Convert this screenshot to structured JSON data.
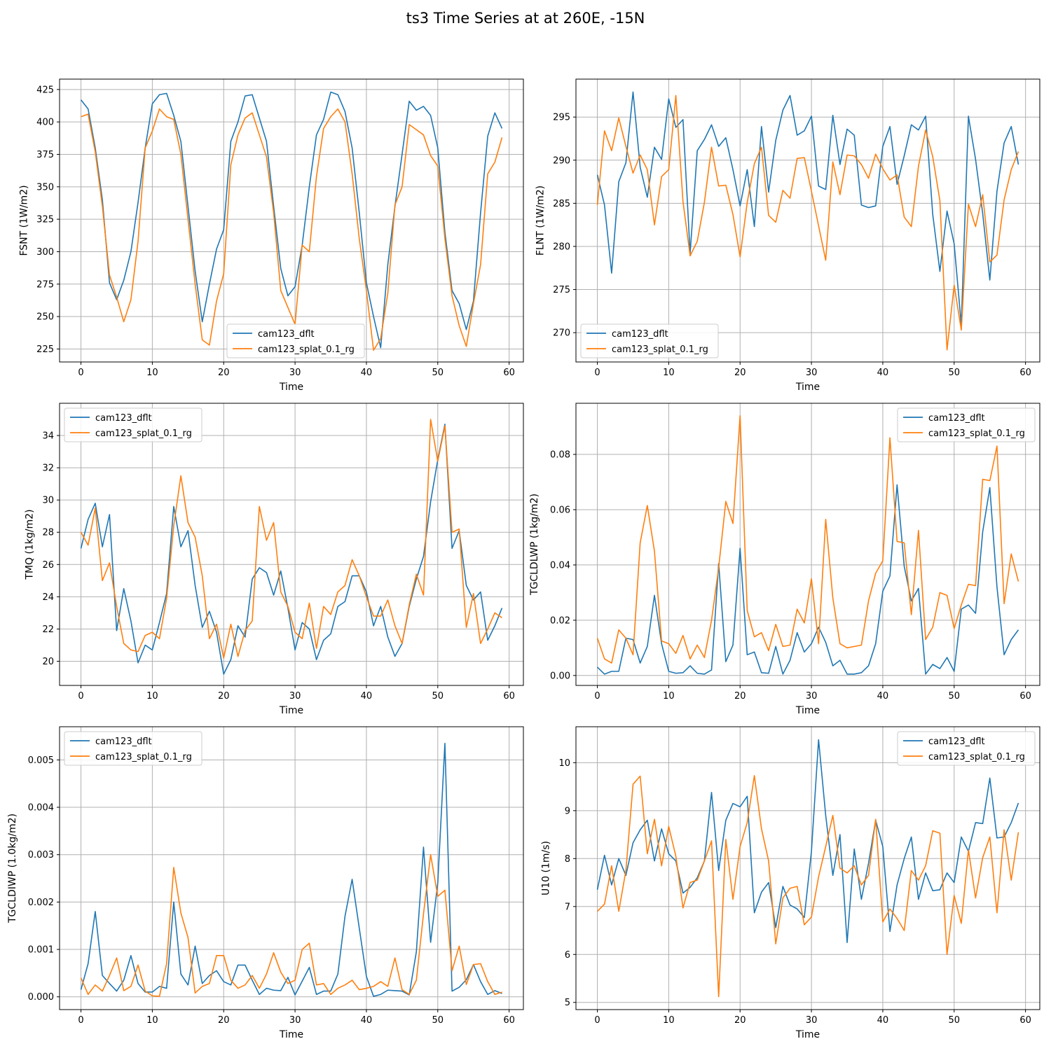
{
  "title": "ts3 Time Series at at 260E, -15N",
  "colors": {
    "series1": "#1f77b4",
    "series2": "#ff7f0e",
    "grid": "#b0b0b0",
    "axis": "#000000"
  },
  "chart_data": [
    {
      "type": "line",
      "panel": "top-left",
      "title": "",
      "xlabel": "Time",
      "ylabel": "FSNT (1W/m2)",
      "xlim": [
        -3,
        62
      ],
      "ylim": [
        215,
        433
      ],
      "xticks": [
        0,
        10,
        20,
        30,
        40,
        50,
        60
      ],
      "yticks": [
        225,
        250,
        275,
        300,
        325,
        350,
        375,
        400,
        425
      ],
      "grid": true,
      "legend": "lower-center",
      "series": [
        {
          "name": "cam123_dflt",
          "color": "#1f77b4",
          "values": [
            417,
            410,
            380,
            340,
            276,
            263,
            278,
            300,
            338,
            380,
            414,
            421,
            422,
            405,
            385,
            335,
            285,
            246,
            275,
            302,
            317,
            385,
            400,
            420,
            421,
            403,
            385,
            335,
            287,
            266,
            273,
            305,
            350,
            390,
            402,
            423,
            421,
            408,
            380,
            330,
            276,
            250,
            226,
            290,
            335,
            375,
            416,
            409,
            412,
            405,
            380,
            315,
            270,
            260,
            240,
            262,
            330,
            389,
            407,
            395
          ]
        },
        {
          "name": "cam123_splat_0.1_rg",
          "color": "#ff7f0e",
          "values": [
            404,
            406,
            377,
            335,
            282,
            265,
            246,
            263,
            308,
            380,
            393,
            410,
            404,
            402,
            375,
            325,
            275,
            232,
            228,
            262,
            283,
            367,
            390,
            403,
            407,
            390,
            373,
            330,
            270,
            257,
            244,
            305,
            300,
            358,
            395,
            404,
            410,
            400,
            360,
            310,
            270,
            224,
            233,
            268,
            336,
            350,
            398,
            394,
            390,
            374,
            366,
            310,
            266,
            243,
            227,
            260,
            290,
            360,
            369,
            388
          ]
        }
      ]
    },
    {
      "type": "line",
      "panel": "top-right",
      "title": "",
      "xlabel": "Time",
      "ylabel": "FLNT (1W/m2)",
      "xlim": [
        -3,
        62
      ],
      "ylim": [
        266.6,
        299.4
      ],
      "xticks": [
        0,
        10,
        20,
        30,
        40,
        50,
        60
      ],
      "yticks": [
        270,
        275,
        280,
        285,
        290,
        295
      ],
      "grid": true,
      "legend": "lower-left",
      "series": [
        {
          "name": "cam123_dflt",
          "color": "#1f77b4",
          "values": [
            288.3,
            284.8,
            276.9,
            287.5,
            289.7,
            297.9,
            289.2,
            285.7,
            291.5,
            290.1,
            297.1,
            293.8,
            294.7,
            279.2,
            291.1,
            292.4,
            294.1,
            291.6,
            292.6,
            288.9,
            284.7,
            288.9,
            282.3,
            293.9,
            286.3,
            292.3,
            295.8,
            297.5,
            292.9,
            293.4,
            295.1,
            287.0,
            286.6,
            295.2,
            289.5,
            293.6,
            292.9,
            284.8,
            284.5,
            284.7,
            291.6,
            293.9,
            287.2,
            290.5,
            294.1,
            293.5,
            295.1,
            283.7,
            277.1,
            284.1,
            280.3,
            270.9,
            295.1,
            290.1,
            283.8,
            276.1,
            286.4,
            292.0,
            293.9,
            289.5
          ]
        },
        {
          "name": "cam123_splat_0.1_rg",
          "color": "#ff7f0e",
          "values": [
            284.8,
            293.4,
            291.1,
            294.9,
            291.6,
            288.5,
            290.6,
            288.9,
            282.5,
            288.1,
            288.9,
            297.5,
            285.2,
            278.9,
            280.6,
            285.1,
            291.5,
            287.0,
            287.1,
            283.7,
            278.8,
            285.1,
            289.6,
            291.5,
            283.6,
            282.8,
            286.5,
            285.6,
            290.2,
            290.3,
            286.4,
            282.4,
            278.4,
            289.8,
            286.0,
            290.6,
            290.5,
            289.5,
            287.9,
            290.7,
            289.0,
            287.7,
            288.3,
            283.4,
            282.3,
            289.3,
            293.5,
            290.4,
            285.3,
            268.0,
            275.5,
            270.3,
            284.9,
            282.3,
            286.0,
            278.2,
            279.0,
            285.4,
            288.9,
            291.0
          ]
        }
      ]
    },
    {
      "type": "line",
      "panel": "middle-left",
      "title": "",
      "xlabel": "Time",
      "ylabel": "TMQ (1kg/m2)",
      "xlim": [
        -3,
        62
      ],
      "ylim": [
        18.5,
        36.0
      ],
      "xticks": [
        0,
        10,
        20,
        30,
        40,
        50,
        60
      ],
      "yticks": [
        20,
        22,
        24,
        26,
        28,
        30,
        32,
        34
      ],
      "grid": true,
      "legend": "upper-left",
      "series": [
        {
          "name": "cam123_dflt",
          "color": "#1f77b4",
          "values": [
            27.0,
            28.8,
            29.8,
            27.1,
            29.1,
            21.9,
            24.5,
            22.5,
            19.9,
            21.0,
            20.7,
            22.4,
            24.2,
            29.6,
            27.1,
            28.1,
            24.7,
            22.1,
            23.1,
            21.8,
            19.2,
            20.1,
            22.2,
            21.5,
            25.1,
            25.8,
            25.5,
            24.1,
            25.6,
            23.3,
            20.7,
            22.4,
            22.0,
            20.1,
            21.3,
            21.7,
            23.4,
            23.7,
            25.3,
            25.3,
            24.3,
            22.2,
            23.4,
            21.5,
            20.3,
            21.1,
            23.4,
            25.1,
            26.5,
            29.9,
            32.5,
            34.7,
            27.0,
            28.1,
            24.7,
            23.8,
            24.3,
            21.3,
            22.2,
            23.3
          ]
        },
        {
          "name": "cam123_splat_0.1_rg",
          "color": "#ff7f0e",
          "values": [
            28.0,
            27.2,
            29.5,
            25.0,
            26.1,
            23.4,
            21.1,
            20.7,
            20.6,
            21.6,
            21.8,
            21.4,
            23.9,
            28.4,
            31.5,
            28.6,
            27.7,
            25.3,
            21.4,
            22.3,
            20.2,
            22.3,
            20.3,
            21.9,
            22.5,
            29.6,
            27.5,
            28.6,
            24.3,
            23.4,
            21.8,
            21.4,
            23.6,
            20.8,
            23.4,
            22.9,
            24.3,
            24.7,
            26.3,
            25.3,
            24.0,
            22.8,
            22.8,
            23.8,
            22.2,
            21.1,
            23.5,
            25.4,
            24.1,
            35.0,
            32.4,
            34.6,
            28.0,
            28.2,
            22.1,
            24.2,
            21.1,
            22.0,
            23.0,
            22.7
          ]
        }
      ]
    },
    {
      "type": "line",
      "panel": "middle-right",
      "title": "",
      "xlabel": "Time",
      "ylabel": "TGCLDLWP (1kg/m2)",
      "xlim": [
        -3,
        62
      ],
      "ylim": [
        -0.0036,
        0.0985
      ],
      "xticks": [
        0,
        10,
        20,
        30,
        40,
        50,
        60
      ],
      "yticks": [
        0.0,
        0.02,
        0.04,
        0.06,
        0.08
      ],
      "ytick_labels": [
        "0.00",
        "0.02",
        "0.04",
        "0.06",
        "0.08"
      ],
      "grid": true,
      "legend": "upper-right",
      "series": [
        {
          "name": "cam123_dflt",
          "color": "#1f77b4",
          "values": [
            0.003,
            0.0005,
            0.0015,
            0.0015,
            0.0135,
            0.013,
            0.0045,
            0.0105,
            0.029,
            0.0115,
            0.0015,
            0.0008,
            0.001,
            0.0035,
            0.0008,
            0.0005,
            0.002,
            0.0405,
            0.005,
            0.011,
            0.046,
            0.0075,
            0.0085,
            0.001,
            0.0008,
            0.0105,
            0.0005,
            0.0055,
            0.0155,
            0.0085,
            0.0115,
            0.0175,
            0.012,
            0.0035,
            0.0055,
            0.0005,
            0.0005,
            0.001,
            0.0035,
            0.0115,
            0.0305,
            0.036,
            0.069,
            0.0395,
            0.027,
            0.0315,
            0.0005,
            0.004,
            0.0025,
            0.0065,
            0.0015,
            0.024,
            0.0255,
            0.0225,
            0.052,
            0.068,
            0.032,
            0.0075,
            0.013,
            0.0165
          ]
        },
        {
          "name": "cam123_splat_0.1_rg",
          "color": "#ff7f0e",
          "values": [
            0.0135,
            0.006,
            0.0045,
            0.0165,
            0.0135,
            0.0075,
            0.048,
            0.0615,
            0.045,
            0.0125,
            0.0115,
            0.008,
            0.0145,
            0.006,
            0.011,
            0.0065,
            0.02,
            0.039,
            0.063,
            0.055,
            0.094,
            0.0235,
            0.014,
            0.0155,
            0.009,
            0.0185,
            0.0105,
            0.011,
            0.024,
            0.019,
            0.035,
            0.0115,
            0.0565,
            0.028,
            0.0115,
            0.01,
            0.0105,
            0.011,
            0.027,
            0.037,
            0.0415,
            0.086,
            0.0485,
            0.048,
            0.022,
            0.0525,
            0.013,
            0.0175,
            0.03,
            0.029,
            0.017,
            0.0255,
            0.033,
            0.0325,
            0.071,
            0.0705,
            0.083,
            0.026,
            0.044,
            0.034
          ]
        }
      ]
    },
    {
      "type": "line",
      "panel": "bottom-left",
      "title": "",
      "xlabel": "Time",
      "ylabel": "TGCLDIWP (1.0kg/m2)",
      "xlim": [
        -3,
        62
      ],
      "ylim": [
        -0.00027,
        0.0057
      ],
      "xticks": [
        0,
        10,
        20,
        30,
        40,
        50,
        60
      ],
      "yticks": [
        0.0,
        0.001,
        0.002,
        0.003,
        0.004,
        0.005
      ],
      "ytick_labels": [
        "0.000",
        "0.001",
        "0.002",
        "0.003",
        "0.004",
        "0.005"
      ],
      "grid": true,
      "legend": "upper-left",
      "series": [
        {
          "name": "cam123_dflt",
          "color": "#1f77b4",
          "values": [
            0.00015,
            0.0007,
            0.0018,
            0.00045,
            0.00028,
            0.00012,
            0.00035,
            0.00087,
            0.00028,
            0.0001,
            0.0001,
            0.00022,
            0.00018,
            0.002,
            0.00048,
            0.00025,
            0.00107,
            0.00028,
            0.00045,
            0.00055,
            0.00032,
            0.00025,
            0.00067,
            0.00067,
            0.00035,
            5e-05,
            0.00018,
            0.00014,
            0.00013,
            0.00041,
            4e-05,
            0.00033,
            0.00062,
            5e-05,
            0.00012,
            0.00012,
            0.00048,
            0.0017,
            0.00248,
            0.00145,
            0.00043,
            1e-05,
            5e-05,
            0.00014,
            0.00013,
            0.00012,
            4e-05,
            0.00095,
            0.00316,
            0.00115,
            0.0024,
            0.00535,
            0.00012,
            0.0002,
            0.00036,
            0.00068,
            0.00032,
            5e-05,
            0.00013,
            7e-05
          ]
        },
        {
          "name": "cam123_splat_0.1_rg",
          "color": "#ff7f0e",
          "values": [
            0.0004,
            5e-05,
            0.00025,
            0.00012,
            0.00045,
            0.00082,
            0.00013,
            0.00022,
            0.00067,
            0.00012,
            2e-05,
            1e-05,
            0.0007,
            0.00273,
            0.00177,
            0.00125,
            8e-05,
            0.00022,
            0.00028,
            0.00087,
            0.00087,
            0.00035,
            0.00018,
            0.00025,
            0.00045,
            0.00018,
            0.00048,
            0.00093,
            0.00052,
            0.00028,
            0.00035,
            0.001,
            0.00113,
            0.00025,
            0.00028,
            5e-05,
            0.00018,
            0.00025,
            0.00035,
            0.00015,
            0.00018,
            0.00022,
            0.00032,
            0.00022,
            0.00082,
            0.00015,
            5e-05,
            0.00035,
            0.00175,
            0.003,
            0.00212,
            0.00225,
            0.00055,
            0.00107,
            0.00026,
            0.00068,
            0.0007,
            0.00032,
            5e-05,
            0.0001
          ]
        }
      ]
    },
    {
      "type": "line",
      "panel": "bottom-right",
      "title": "",
      "xlabel": "Time",
      "ylabel": "U10 (1m/s)",
      "xlim": [
        -3,
        62
      ],
      "ylim": [
        4.85,
        10.75
      ],
      "xticks": [
        0,
        10,
        20,
        30,
        40,
        50,
        60
      ],
      "yticks": [
        5,
        6,
        7,
        8,
        9,
        10
      ],
      "grid": true,
      "legend": "upper-right",
      "series": [
        {
          "name": "cam123_dflt",
          "color": "#1f77b4",
          "values": [
            7.35,
            8.07,
            7.45,
            8.0,
            7.65,
            8.33,
            8.6,
            8.8,
            7.95,
            8.62,
            8.1,
            7.95,
            7.28,
            7.4,
            7.6,
            7.95,
            9.38,
            7.75,
            8.8,
            9.15,
            9.08,
            9.3,
            6.87,
            7.3,
            7.5,
            6.56,
            7.42,
            7.03,
            6.95,
            6.77,
            8.15,
            10.48,
            8.9,
            7.65,
            8.5,
            6.25,
            8.2,
            7.15,
            7.9,
            8.8,
            8.25,
            6.48,
            7.45,
            8.0,
            8.45,
            7.15,
            7.7,
            7.33,
            7.35,
            7.7,
            7.5,
            8.45,
            8.15,
            8.75,
            8.73,
            9.68,
            8.43,
            8.45,
            8.75,
            9.16
          ]
        },
        {
          "name": "cam123_splat_0.1_rg",
          "color": "#ff7f0e",
          "values": [
            6.9,
            7.05,
            7.85,
            6.9,
            7.75,
            9.55,
            9.72,
            8.1,
            8.82,
            7.85,
            8.67,
            8.05,
            6.97,
            7.5,
            7.55,
            7.95,
            8.37,
            5.12,
            8.4,
            7.15,
            8.25,
            8.75,
            9.73,
            8.62,
            7.95,
            6.22,
            7.18,
            7.38,
            7.42,
            6.62,
            6.78,
            7.62,
            8.25,
            8.9,
            7.8,
            7.7,
            7.85,
            7.45,
            7.65,
            8.82,
            6.68,
            6.95,
            6.75,
            6.5,
            7.75,
            7.55,
            7.85,
            8.58,
            8.53,
            6.0,
            7.23,
            6.65,
            8.18,
            7.18,
            8.02,
            8.45,
            6.87,
            8.6,
            7.55,
            8.55
          ]
        }
      ]
    }
  ]
}
